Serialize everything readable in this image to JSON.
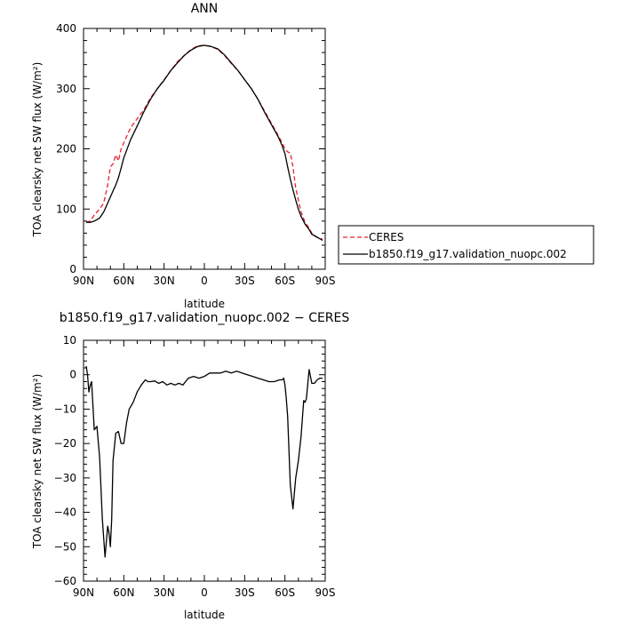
{
  "chart_data": [
    {
      "type": "line",
      "title": "ANN",
      "xlabel": "latitude",
      "ylabel": "TOA clearsky net SW flux (W/m²)",
      "xlim": [
        90,
        -90
      ],
      "ylim": [
        0,
        400
      ],
      "x_ticks": [
        "90N",
        "60N",
        "30N",
        "0",
        "30S",
        "60S",
        "90S"
      ],
      "y_ticks": [
        "0",
        "100",
        "200",
        "300",
        "400"
      ],
      "legend_position": "right, outside plot",
      "series": [
        {
          "name": "CERES",
          "color": "#e8202a",
          "dash": "dashed",
          "x": [
            88,
            85,
            82,
            78,
            75,
            72,
            70,
            68,
            66,
            64,
            62,
            60,
            55,
            50,
            45,
            40,
            35,
            30,
            25,
            20,
            15,
            10,
            5,
            0,
            -5,
            -10,
            -15,
            -20,
            -25,
            -30,
            -35,
            -40,
            -45,
            -50,
            -55,
            -58,
            -60,
            -62,
            -64,
            -66,
            -68,
            -70,
            -72,
            -75,
            -78,
            -80,
            -82,
            -85,
            -88
          ],
          "y": [
            78,
            80,
            90,
            100,
            110,
            140,
            170,
            175,
            190,
            180,
            200,
            210,
            235,
            250,
            265,
            285,
            300,
            315,
            330,
            345,
            355,
            365,
            371,
            372,
            370,
            365,
            355,
            342,
            330,
            315,
            300,
            282,
            262,
            242,
            222,
            210,
            200,
            195,
            193,
            170,
            135,
            115,
            95,
            78,
            68,
            60,
            55,
            52,
            50
          ]
        },
        {
          "name": "b1850.f19_g17.validation_nuopc.002",
          "color": "#000000",
          "dash": "solid",
          "x": [
            88,
            85,
            82,
            78,
            75,
            72,
            70,
            68,
            66,
            64,
            62,
            60,
            55,
            50,
            45,
            40,
            35,
            30,
            25,
            20,
            15,
            10,
            5,
            0,
            -5,
            -10,
            -15,
            -20,
            -25,
            -30,
            -35,
            -40,
            -45,
            -50,
            -55,
            -58,
            -60,
            -62,
            -64,
            -66,
            -68,
            -70,
            -72,
            -75,
            -78,
            -80,
            -82,
            -85,
            -88
          ],
          "y": [
            78,
            78,
            80,
            85,
            95,
            110,
            120,
            130,
            140,
            152,
            168,
            185,
            215,
            238,
            262,
            283,
            300,
            314,
            330,
            343,
            355,
            364,
            370,
            372,
            370,
            366,
            356,
            343,
            330,
            315,
            300,
            282,
            260,
            240,
            220,
            205,
            192,
            170,
            150,
            132,
            115,
            100,
            88,
            75,
            66,
            58,
            56,
            52,
            48
          ]
        }
      ]
    },
    {
      "type": "line",
      "title": "b1850.f19_g17.validation_nuopc.002 − CERES",
      "xlabel": "latitude",
      "ylabel": "TOA clearsky net SW flux (W/m²)",
      "xlim": [
        90,
        -90
      ],
      "ylim": [
        -60,
        10
      ],
      "x_ticks": [
        "90N",
        "60N",
        "30N",
        "0",
        "30S",
        "60S",
        "90S"
      ],
      "y_ticks": [
        "−60",
        "−50",
        "−40",
        "−30",
        "−20",
        "−10",
        "0",
        "10"
      ],
      "series": [
        {
          "color": "#000000",
          "dash": "solid",
          "x": [
            88,
            87,
            86,
            85,
            84,
            82,
            80,
            78,
            76,
            74,
            72,
            71,
            70,
            69,
            68,
            66,
            64,
            62,
            60,
            58,
            56,
            53,
            50,
            47,
            44,
            42,
            40,
            37,
            34,
            31,
            28,
            25,
            22,
            19,
            16,
            12,
            8,
            4,
            0,
            -4,
            -8,
            -12,
            -16,
            -20,
            -24,
            -28,
            -32,
            -36,
            -40,
            -44,
            -48,
            -52,
            -56,
            -58,
            -59,
            -60,
            -61,
            -62,
            -64,
            -66,
            -68,
            -70,
            -72,
            -74,
            -75,
            -76,
            -78,
            -80,
            -82,
            -84,
            -86,
            -88
          ],
          "y": [
            2.5,
            0,
            -5,
            -3,
            -2,
            -16,
            -15,
            -24,
            -42,
            -53,
            -44,
            -46,
            -50,
            -42,
            -25,
            -17,
            -16.5,
            -20,
            -20,
            -14,
            -10,
            -8,
            -5,
            -3,
            -1.5,
            -2,
            -2,
            -1.8,
            -2.5,
            -2,
            -3,
            -2.5,
            -3,
            -2.5,
            -3,
            -1,
            -0.5,
            -1,
            -0.5,
            0.5,
            0.5,
            0.5,
            1,
            0.5,
            1,
            0.5,
            0,
            -0.5,
            -1,
            -1.5,
            -2,
            -2,
            -1.5,
            -1.5,
            -1,
            -3,
            -7,
            -12,
            -32,
            -39,
            -30,
            -25,
            -18,
            -7.5,
            -8,
            -7,
            1.5,
            -2.5,
            -2.5,
            -1.5,
            -1,
            -1
          ]
        }
      ]
    }
  ]
}
